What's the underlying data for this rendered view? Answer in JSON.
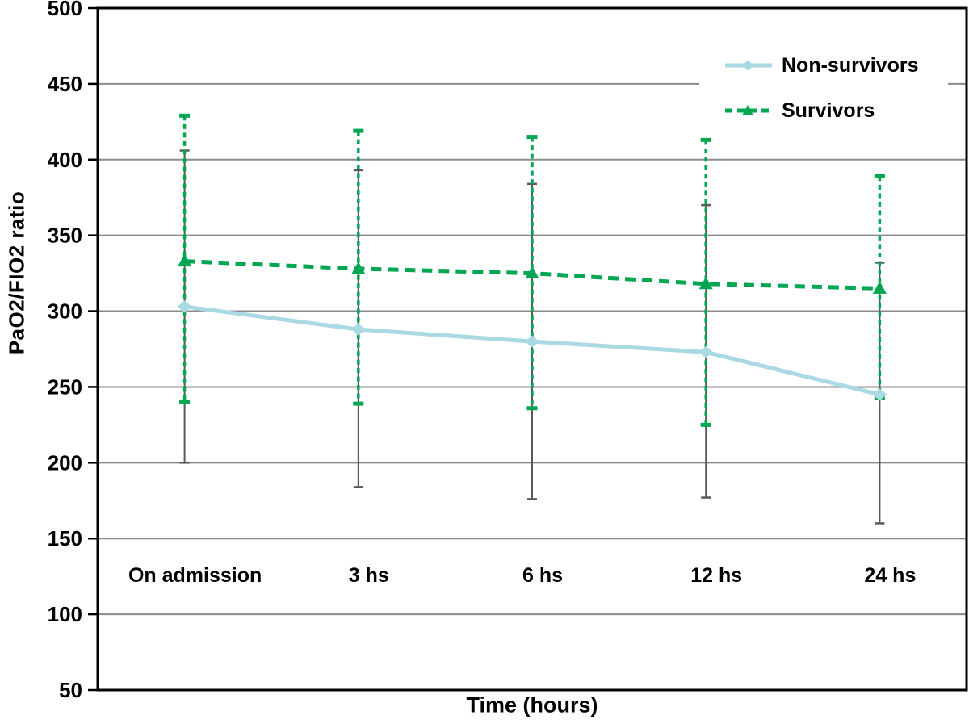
{
  "chart_data": {
    "type": "line",
    "title": "",
    "xlabel": "Time (hours)",
    "ylabel": "PaO2/FIO2 ratio",
    "categories": [
      "On admission",
      "3 hs",
      "6 hs",
      "12 hs",
      "24 hs"
    ],
    "ylim": [
      50,
      500
    ],
    "ytick_interval": 50,
    "grid": "horizontal",
    "legend_position": "top-right",
    "series": [
      {
        "name": "Non-survivors",
        "color": "#a9d9e2",
        "marker": "diamond",
        "line_style": "solid",
        "values": [
          303,
          288,
          280,
          273,
          245
        ],
        "error_high": [
          406,
          393,
          384,
          370,
          332
        ],
        "error_low": [
          200,
          184,
          176,
          177,
          160
        ],
        "error_bar_color": "#5a5a5a",
        "error_bar_style": "solid"
      },
      {
        "name": "Survivors",
        "color": "#00a651",
        "marker": "triangle",
        "line_style": "dashed",
        "values": [
          333,
          328,
          325,
          318,
          315
        ],
        "error_high": [
          429,
          419,
          415,
          413,
          389
        ],
        "error_low": [
          240,
          239,
          236,
          225,
          243
        ],
        "error_bar_color": "#00a651",
        "error_bar_style": "dashed"
      }
    ],
    "colors": {
      "gridline": "#8a8a8a",
      "axis": "#000000",
      "background": "#ffffff"
    }
  }
}
